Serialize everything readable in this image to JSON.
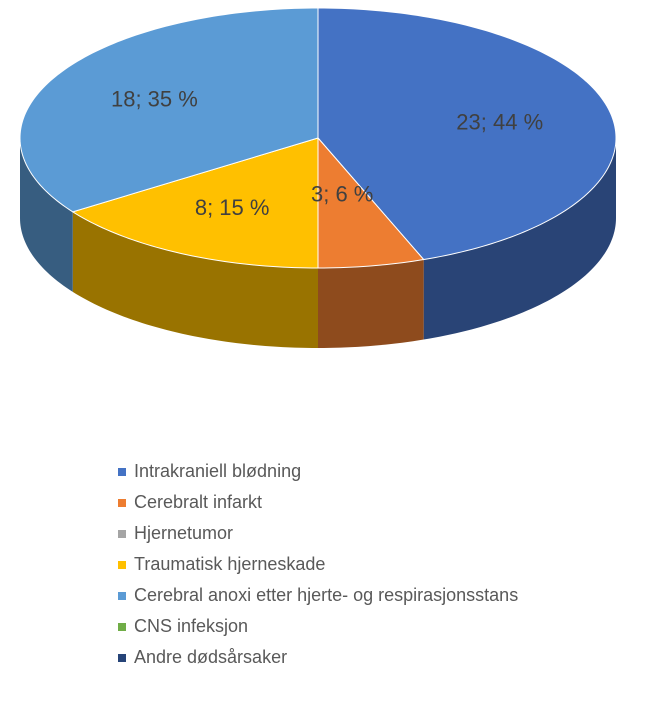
{
  "chart_data": {
    "type": "pie",
    "categories": [
      "Intrakraniell blødning",
      "Cerebralt infarkt",
      "Hjernetumor",
      "Traumatisk hjerneskade",
      "Cerebral anoxi etter hjerte- og respirasjonsstans",
      "CNS infeksjon",
      "Andre dødsårsaker"
    ],
    "values": [
      23,
      3,
      0,
      8,
      18,
      0,
      0
    ],
    "value_labels": [
      "23; 44 %",
      "3; 6 %",
      null,
      "8; 15 %",
      "18; 35 %",
      null,
      null
    ],
    "colors": [
      "#4472c4",
      "#ed7d31",
      "#a5a5a5",
      "#ffc000",
      "#5b9bd5",
      "#70ad47",
      "#264478"
    ],
    "legend": "bottom"
  }
}
